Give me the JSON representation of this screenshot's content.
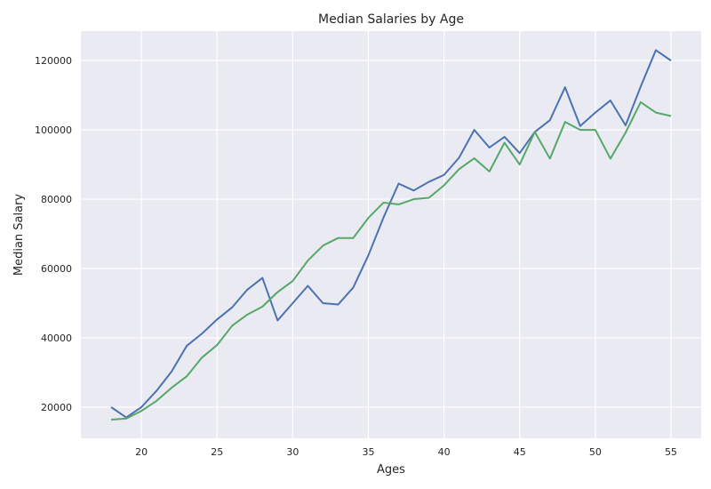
{
  "chart_data": {
    "type": "line",
    "title": "Median Salaries by Age",
    "xlabel": "Ages",
    "ylabel": "Median Salary",
    "xlim": [
      16,
      57
    ],
    "ylim": [
      11000,
      128500
    ],
    "xticks": [
      20,
      25,
      30,
      35,
      40,
      45,
      50,
      55
    ],
    "yticks": [
      20000,
      40000,
      60000,
      80000,
      100000,
      120000
    ],
    "grid": true,
    "style": "seaborn",
    "colors": {
      "background": "#EAEAF2",
      "grid": "#FFFFFF"
    },
    "x": [
      18,
      19,
      20,
      21,
      22,
      23,
      24,
      25,
      26,
      27,
      28,
      29,
      30,
      31,
      32,
      33,
      34,
      35,
      36,
      37,
      38,
      39,
      40,
      41,
      42,
      43,
      44,
      45,
      46,
      47,
      48,
      49,
      50,
      51,
      52,
      53,
      54,
      55
    ],
    "series": [
      {
        "name": "",
        "color": "#4C72B0",
        "values": [
          20000,
          17000,
          20000,
          24700,
          30300,
          37700,
          41200,
          45300,
          48800,
          53900,
          57300,
          45000,
          50000,
          55000,
          50000,
          49600,
          54500,
          63800,
          74700,
          84500,
          82500,
          85000,
          87000,
          92000,
          100000,
          94900,
          98000,
          93300,
          99400,
          102800,
          112300,
          101100,
          105000,
          108500,
          101300,
          112500,
          123000,
          120000
        ]
      },
      {
        "name": "",
        "color": "#55A868",
        "values": [
          16400,
          16700,
          18900,
          21800,
          25600,
          28900,
          34300,
          37900,
          43500,
          46700,
          49000,
          53200,
          56400,
          62300,
          66600,
          68800,
          68800,
          74600,
          79000,
          78500,
          80000,
          80400,
          84000,
          88700,
          91800,
          88000,
          96300,
          90000,
          99400,
          91700,
          102300,
          100000,
          100000,
          91700,
          99200,
          108000,
          105000,
          104000
        ]
      }
    ]
  }
}
